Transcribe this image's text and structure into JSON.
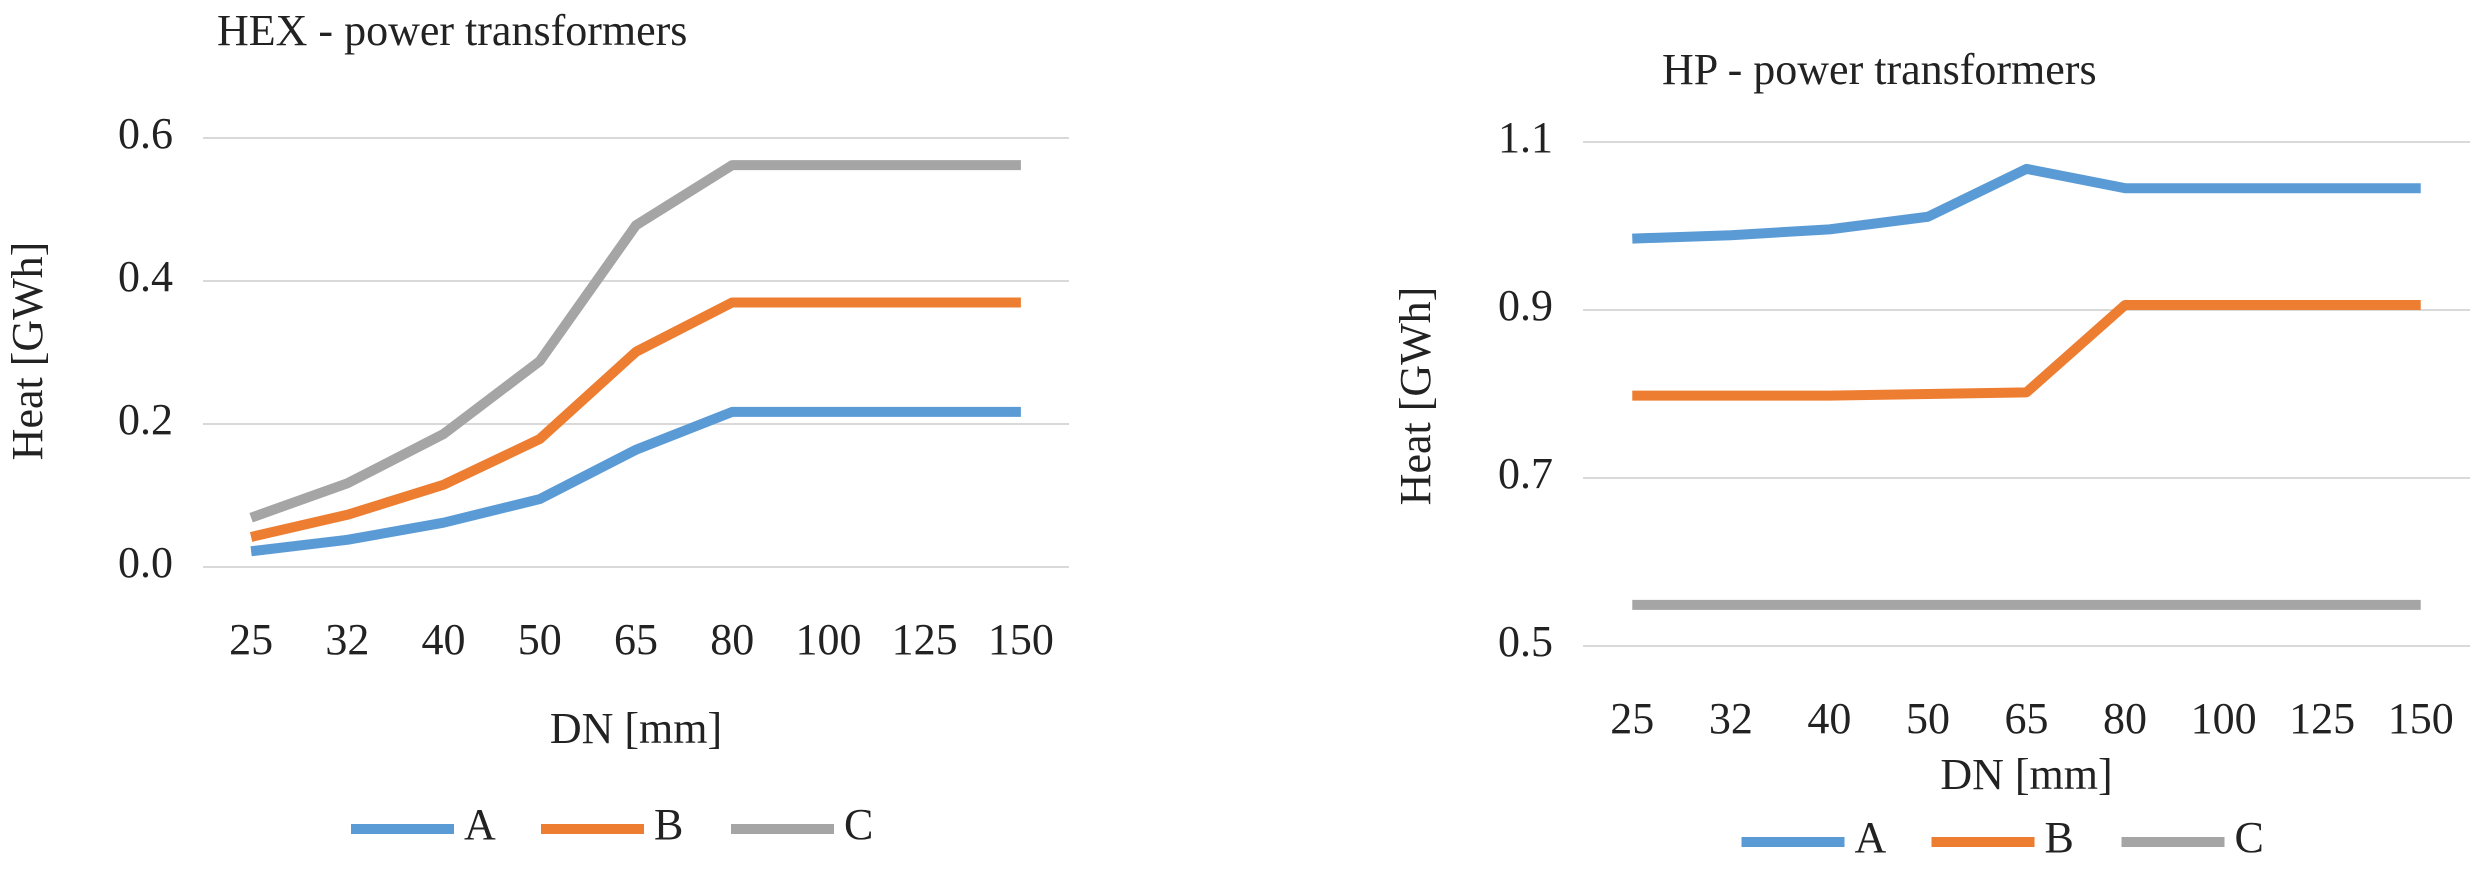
{
  "chart_data": [
    {
      "type": "line",
      "title": "HEX - power transformers",
      "x_label": "DN [mm]",
      "y_label": "Heat [GWh]",
      "categories": [
        "25",
        "32",
        "40",
        "50",
        "65",
        "80",
        "100",
        "125",
        "150"
      ],
      "series": [
        {
          "name": "A",
          "color": "#5b9bd5",
          "values": [
            0.022,
            0.038,
            0.062,
            0.095,
            0.164,
            0.217,
            0.217,
            0.217,
            0.217
          ]
        },
        {
          "name": "B",
          "color": "#ed7d31",
          "values": [
            0.042,
            0.073,
            0.115,
            0.179,
            0.301,
            0.37,
            0.37,
            0.37,
            0.37
          ]
        },
        {
          "name": "C",
          "color": "#a5a5a5",
          "values": [
            0.069,
            0.117,
            0.186,
            0.288,
            0.478,
            0.562,
            0.562,
            0.562,
            0.562
          ]
        }
      ],
      "ylim": [
        0,
        0.6
      ],
      "yticks": [
        {
          "value": 0,
          "label": "0.0"
        },
        0.2,
        0.4,
        0.6
      ],
      "grid": true,
      "legend": "bottom"
    },
    {
      "type": "line",
      "title": "HP - power transformers",
      "x_label": "DN [mm]",
      "y_label": "Heat [GWh]",
      "categories": [
        "25",
        "32",
        "40",
        "50",
        "65",
        "80",
        "100",
        "125",
        "150"
      ],
      "series": [
        {
          "name": "A",
          "color": "#5b9bd5",
          "values": [
            0.985,
            0.989,
            0.996,
            1.011,
            1.068,
            1.045,
            1.045,
            1.045,
            1.045
          ]
        },
        {
          "name": "B",
          "color": "#ed7d31",
          "values": [
            0.798,
            0.798,
            0.798,
            0.8,
            0.802,
            0.906,
            0.906,
            0.906,
            0.906
          ]
        },
        {
          "name": "C",
          "color": "#a5a5a5",
          "values": [
            0.549,
            0.549,
            0.549,
            0.549,
            0.549,
            0.549,
            0.549,
            0.549,
            0.549
          ]
        }
      ],
      "ylim": [
        0.5,
        1.1
      ],
      "yticks": [
        0.5,
        0.7,
        0.9,
        1.1
      ],
      "grid": true,
      "legend": "bottom"
    }
  ]
}
